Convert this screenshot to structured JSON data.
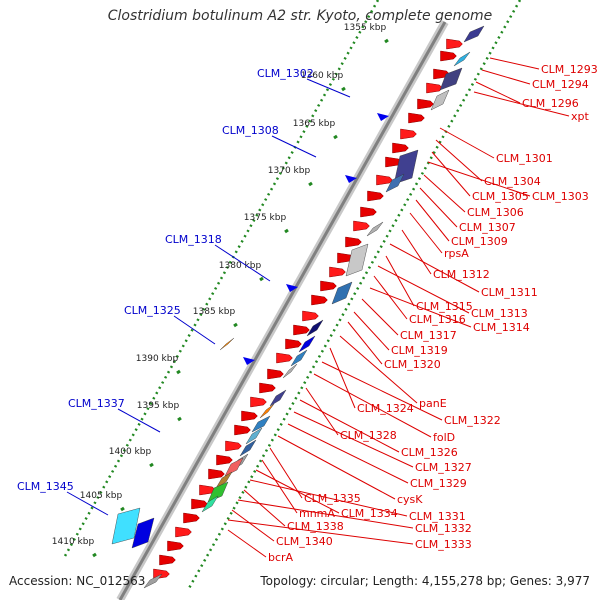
{
  "title": "Clostridium botulinum A2 str. Kyoto, complete genome",
  "footer": {
    "accession": "Accession: NC_012563",
    "stats": "Topology: circular; Length: 4,155,278 bp; Genes: 3,977"
  },
  "colors": {
    "forward_label": "#0000cc",
    "reverse_label": "#dd0000",
    "backbone": "#808080",
    "ticks": "#228822"
  },
  "kbp_ticks": [
    {
      "label": "1355 kbp"
    },
    {
      "label": "1360 kbp"
    },
    {
      "label": "1365 kbp"
    },
    {
      "label": "1370 kbp"
    },
    {
      "label": "1375 kbp"
    },
    {
      "label": "1380 kbp"
    },
    {
      "label": "1385 kbp"
    },
    {
      "label": "1390 kbp"
    },
    {
      "label": "1395 kbp"
    },
    {
      "label": "1400 kbp"
    },
    {
      "label": "1405 kbp"
    },
    {
      "label": "1410 kbp"
    }
  ],
  "forward_labels": [
    {
      "name": "CLM_1302"
    },
    {
      "name": "CLM_1308"
    },
    {
      "name": "CLM_1318"
    },
    {
      "name": "CLM_1325"
    },
    {
      "name": "CLM_1337"
    },
    {
      "name": "CLM_1345"
    }
  ],
  "reverse_labels": [
    {
      "name": "CLM_1293"
    },
    {
      "name": "CLM_1294"
    },
    {
      "name": "CLM_1296"
    },
    {
      "name": "xpt"
    },
    {
      "name": "CLM_1301"
    },
    {
      "name": "CLM_1304"
    },
    {
      "name": "CLM_1305"
    },
    {
      "name": "CLM_1303"
    },
    {
      "name": "CLM_1306"
    },
    {
      "name": "CLM_1307"
    },
    {
      "name": "CLM_1309"
    },
    {
      "name": "rpsA"
    },
    {
      "name": "CLM_1312"
    },
    {
      "name": "CLM_1311"
    },
    {
      "name": "CLM_1315"
    },
    {
      "name": "CLM_1313"
    },
    {
      "name": "CLM_1316"
    },
    {
      "name": "CLM_1314"
    },
    {
      "name": "CLM_1317"
    },
    {
      "name": "CLM_1319"
    },
    {
      "name": "CLM_1320"
    },
    {
      "name": "panE"
    },
    {
      "name": "CLM_1324"
    },
    {
      "name": "CLM_1322"
    },
    {
      "name": "folD"
    },
    {
      "name": "CLM_1328"
    },
    {
      "name": "CLM_1326"
    },
    {
      "name": "CLM_1327"
    },
    {
      "name": "CLM_1329"
    },
    {
      "name": "cysK"
    },
    {
      "name": "CLM_1335"
    },
    {
      "name": "mnmA"
    },
    {
      "name": "CLM_1334"
    },
    {
      "name": "CLM_1331"
    },
    {
      "name": "CLM_1338"
    },
    {
      "name": "CLM_1332"
    },
    {
      "name": "CLM_1340"
    },
    {
      "name": "CLM_1333"
    },
    {
      "name": "bcrA"
    }
  ]
}
